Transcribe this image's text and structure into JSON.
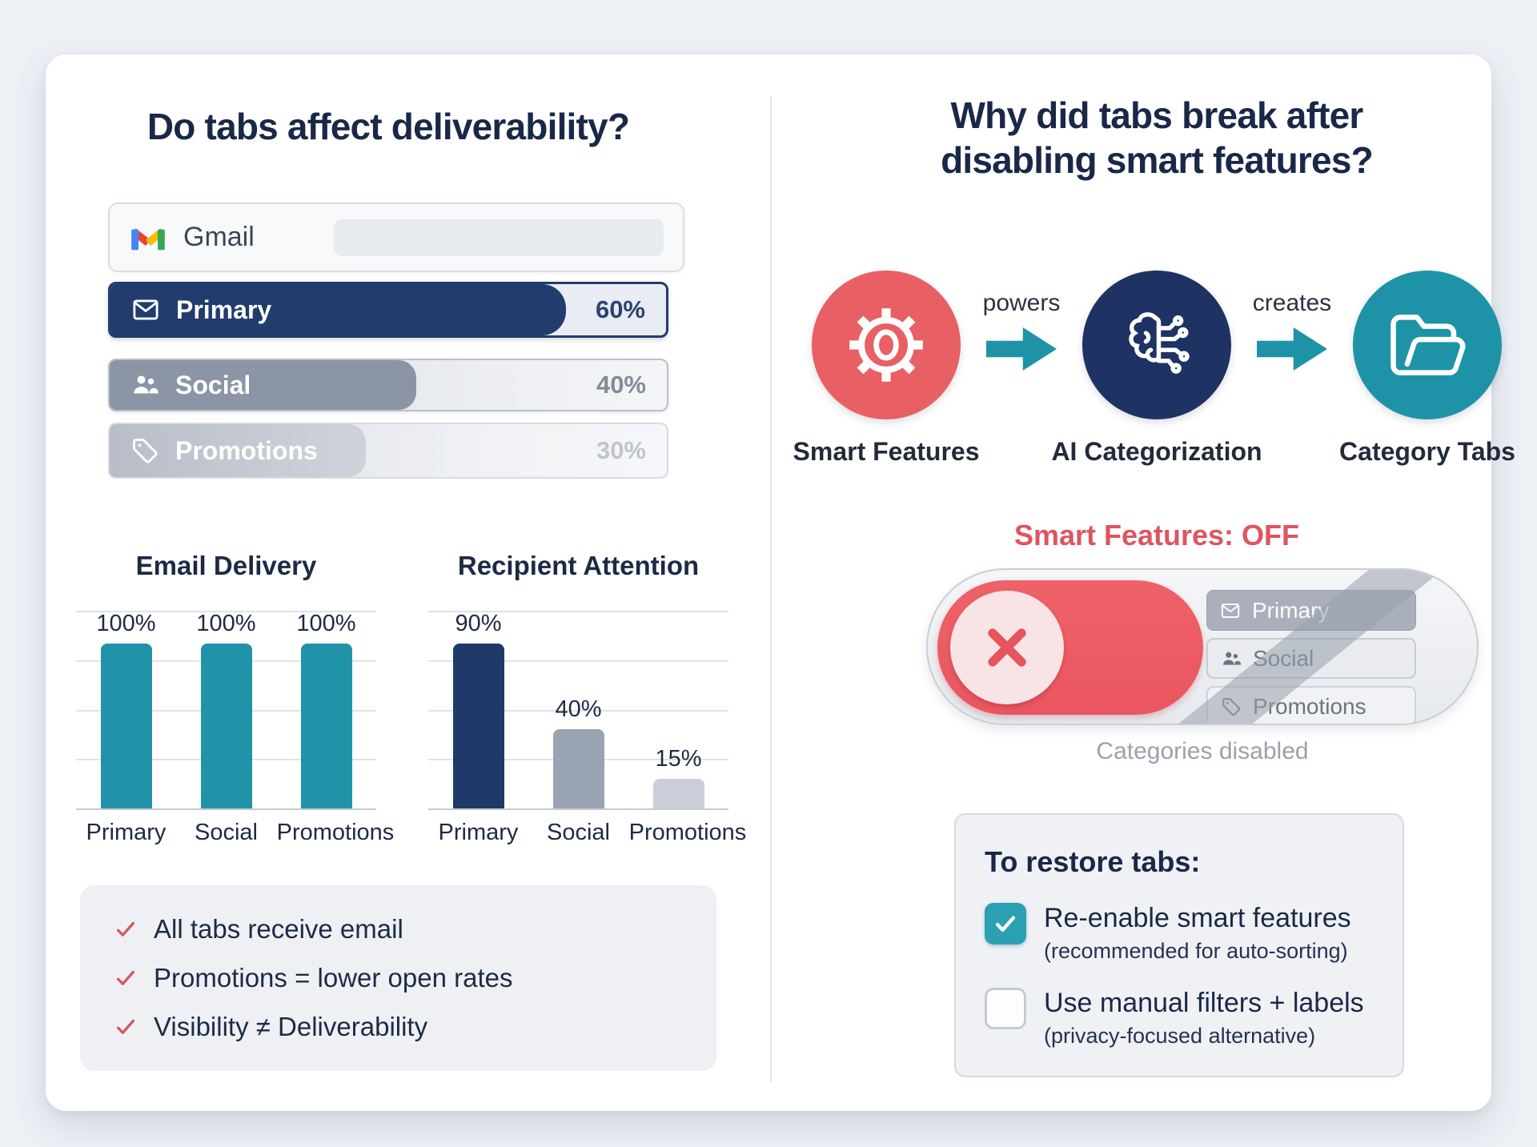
{
  "left": {
    "title": "Do tabs affect deliverability?",
    "gmail": {
      "label": "Gmail"
    },
    "tabs": [
      {
        "id": "primary",
        "label": "Primary",
        "value": "60%",
        "fill_pct": 82
      },
      {
        "id": "social",
        "label": "Social",
        "value": "40%",
        "fill_pct": 55
      },
      {
        "id": "promotions",
        "label": "Promotions",
        "value": "30%",
        "fill_pct": 46
      }
    ],
    "checklist": [
      "All tabs receive email",
      "Promotions = lower open rates",
      "Visibility ≠ Deliverability"
    ]
  },
  "right": {
    "title": "Why did tabs break after\ndisabling smart features?",
    "flow": {
      "nodes": [
        {
          "label": "Smart Features",
          "icon": "gear-icon",
          "color": "#e85f64"
        },
        {
          "label": "AI Categorization",
          "icon": "brain-circuit-icon",
          "color": "#1e3263"
        },
        {
          "label": "Category Tabs",
          "icon": "folder-open-icon",
          "color": "#1e93a8"
        }
      ],
      "connectors": [
        "powers",
        "creates"
      ]
    },
    "off_title": "Smart Features: OFF",
    "toggle": {
      "state": "off",
      "chips": [
        {
          "label": "Primary"
        },
        {
          "label": "Social"
        },
        {
          "label": "Promotions"
        }
      ],
      "caption": "Categories disabled"
    },
    "restore": {
      "title": "To restore tabs:",
      "options": [
        {
          "label": "Re-enable smart features",
          "sub": "(recommended for auto-sorting)",
          "checked": true
        },
        {
          "label": "Use manual filters + labels",
          "sub": "(privacy-focused alternative)",
          "checked": false
        }
      ]
    }
  },
  "chart_data": [
    {
      "type": "bar",
      "title": "Email Delivery",
      "categories": [
        "Primary",
        "Social",
        "Promotions"
      ],
      "values": [
        100,
        100,
        100
      ],
      "value_labels": [
        "100%",
        "100%",
        "100%"
      ],
      "bar_colors": [
        "#2093a8",
        "#2093a8",
        "#2093a8"
      ],
      "ylim": [
        0,
        100
      ],
      "grid": true,
      "legend": false
    },
    {
      "type": "bar",
      "title": "Recipient Attention",
      "categories": [
        "Primary",
        "Social",
        "Promotions"
      ],
      "values": [
        90,
        40,
        15
      ],
      "value_labels": [
        "90%",
        "40%",
        "15%"
      ],
      "bar_colors": [
        "#1f3a68",
        "#99a3b1",
        "#c9ced8"
      ],
      "ylim": [
        0,
        100
      ],
      "grid": true,
      "legend": false
    }
  ],
  "colors": {
    "navy": "#213c6d",
    "teal": "#1e93a8",
    "red": "#e85f64",
    "page_bg": "#edf0f5",
    "card_bg": "#ffffff"
  }
}
